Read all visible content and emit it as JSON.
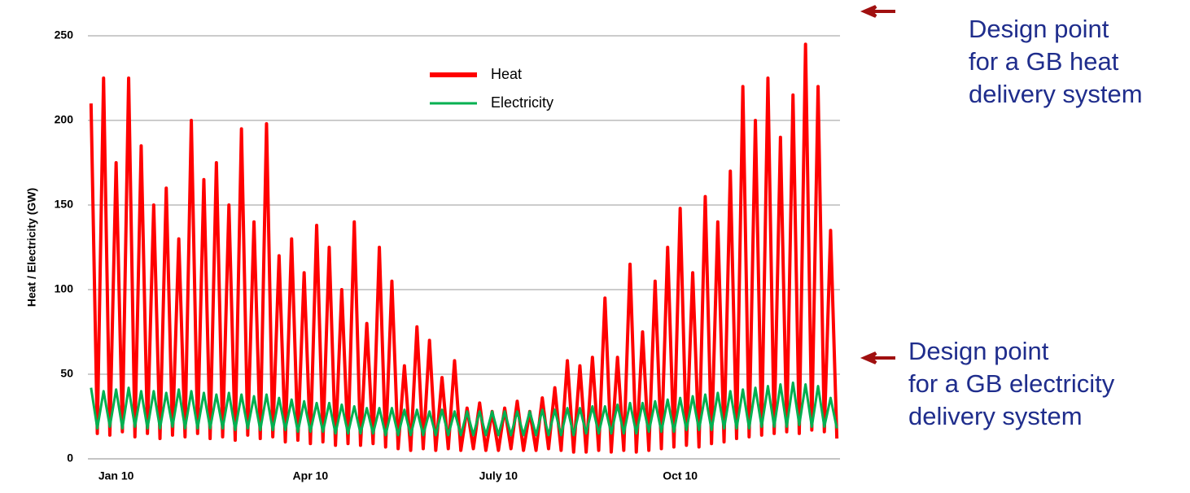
{
  "chart_data": {
    "type": "line",
    "y_label": "Heat / Electricity (GW)",
    "categories": [
      null,
      null,
      null,
      null,
      "Jan 10",
      null,
      null,
      null,
      null,
      null,
      null,
      null,
      null,
      null,
      null,
      null,
      null,
      null,
      null,
      null,
      null,
      null,
      null,
      null,
      null,
      null,
      null,
      null,
      null,
      null,
      null,
      null,
      null,
      null,
      null,
      "Apr 10",
      null,
      null,
      null,
      null,
      null,
      null,
      null,
      null,
      null,
      null,
      null,
      null,
      null,
      null,
      null,
      null,
      null,
      null,
      null,
      null,
      null,
      null,
      null,
      null,
      null,
      null,
      null,
      null,
      null,
      "July 10",
      null,
      null,
      null,
      null,
      null,
      null,
      null,
      null,
      null,
      null,
      null,
      null,
      null,
      null,
      null,
      null,
      null,
      null,
      null,
      null,
      null,
      null,
      null,
      null,
      null,
      null,
      null,
      null,
      "Oct 10",
      null,
      null,
      null,
      null,
      null,
      null,
      null,
      null,
      null,
      null,
      null,
      null,
      null,
      null,
      null,
      null,
      null,
      null,
      null,
      null,
      null,
      null,
      null,
      null,
      null
    ],
    "series": [
      {
        "name": "Heat",
        "color": "#ff0000",
        "values": [
          210,
          15,
          225,
          14,
          175,
          16,
          225,
          13,
          185,
          15,
          150,
          12,
          160,
          14,
          130,
          13,
          200,
          15,
          165,
          12,
          175,
          13,
          150,
          11,
          195,
          14,
          140,
          12,
          198,
          13,
          120,
          10,
          130,
          11,
          110,
          9,
          138,
          10,
          125,
          8,
          100,
          9,
          140,
          8,
          80,
          9,
          125,
          7,
          105,
          6,
          55,
          5,
          78,
          6,
          70,
          5,
          48,
          6,
          58,
          5,
          30,
          6,
          33,
          5,
          28,
          5,
          30,
          6,
          34,
          5,
          28,
          5,
          36,
          6,
          42,
          5,
          58,
          4,
          55,
          4,
          60,
          5,
          95,
          4,
          60,
          5,
          115,
          4,
          75,
          5,
          105,
          6,
          125,
          7,
          148,
          8,
          110,
          7,
          155,
          9,
          140,
          10,
          170,
          12,
          220,
          13,
          200,
          14,
          225,
          15,
          190,
          16,
          215,
          15,
          245,
          17,
          220,
          16,
          135,
          12
        ]
      },
      {
        "name": "Electricity",
        "color": "#00b050",
        "values": [
          42,
          18,
          40,
          19,
          41,
          18,
          42,
          19,
          40,
          18,
          40,
          18,
          39,
          19,
          41,
          18,
          40,
          18,
          39,
          18,
          38,
          18,
          39,
          17,
          38,
          18,
          37,
          17,
          38,
          17,
          36,
          17,
          35,
          16,
          34,
          16,
          33,
          16,
          33,
          15,
          32,
          15,
          31,
          15,
          30,
          15,
          30,
          14,
          30,
          14,
          29,
          14,
          29,
          14,
          28,
          14,
          29,
          14,
          28,
          14,
          28,
          14,
          28,
          14,
          28,
          14,
          28,
          14,
          28,
          14,
          28,
          14,
          29,
          14,
          29,
          14,
          30,
          14,
          30,
          15,
          31,
          15,
          31,
          15,
          32,
          15,
          33,
          15,
          33,
          16,
          34,
          16,
          35,
          16,
          36,
          17,
          37,
          17,
          38,
          17,
          39,
          18,
          40,
          18,
          41,
          18,
          42,
          19,
          43,
          19,
          44,
          19,
          45,
          20,
          44,
          19,
          43,
          19,
          36,
          18
        ]
      }
    ],
    "ylim": [
      0,
      250
    ],
    "yticks": [
      0,
      50,
      100,
      150,
      200,
      250
    ],
    "grid": true,
    "annotations": [
      {
        "lines": [
          "Design point",
          "for a GB heat",
          "delivery system"
        ]
      },
      {
        "lines": [
          "Design point",
          "for a GB electricity",
          "delivery system"
        ]
      }
    ]
  }
}
